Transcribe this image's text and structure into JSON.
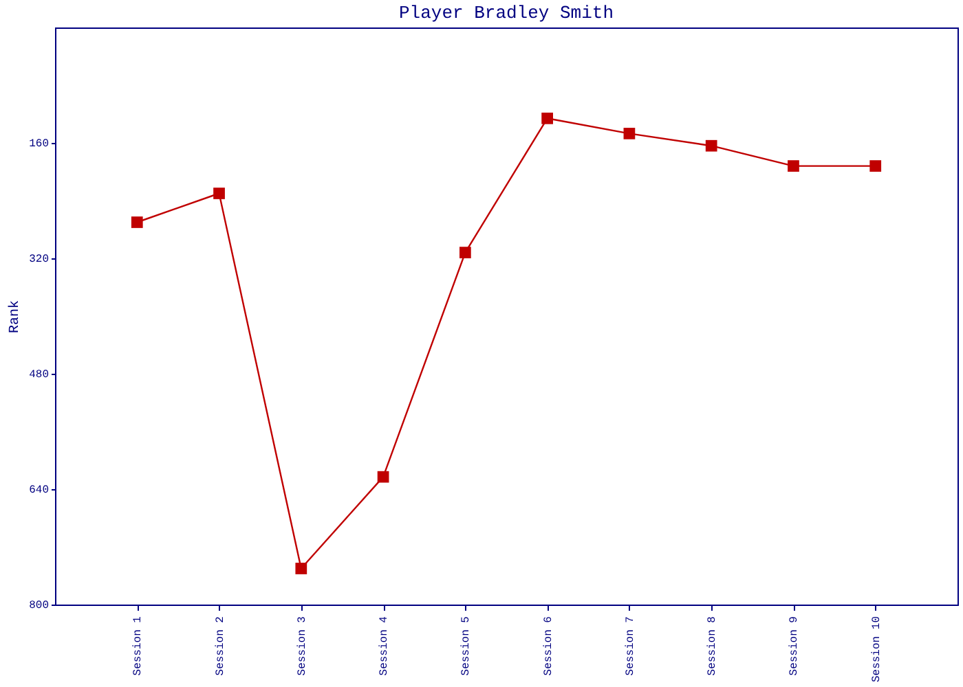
{
  "chart_data": {
    "type": "line",
    "title": "Player Bradley Smith",
    "ylabel": "Rank",
    "categories": [
      "Session 1",
      "Session 2",
      "Session 3",
      "Session 4",
      "Session 5",
      "Session 6",
      "Session 7",
      "Session 8",
      "Session 9",
      "Session 10"
    ],
    "series": [
      {
        "color": "#c00000",
        "values": [
          270,
          230,
          750,
          623,
          312,
          126,
          147,
          164,
          192,
          192
        ]
      }
    ],
    "ylim": [
      800,
      0
    ],
    "yticks": [
      160,
      320,
      480,
      640,
      800
    ],
    "marker": "square",
    "grid": false,
    "legend": false
  }
}
